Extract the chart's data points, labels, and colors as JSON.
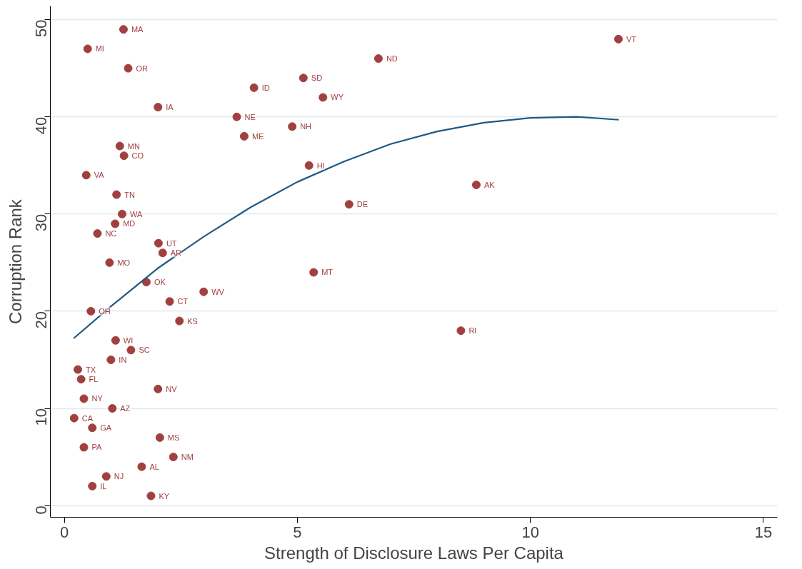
{
  "chart_data": {
    "type": "scatter",
    "xlabel": "Strength of Disclosure Laws Per Capita",
    "ylabel": "Corruption Rank",
    "xlim": [
      -0.3,
      15.3
    ],
    "ylim": [
      -1.2,
      51.4
    ],
    "xticks": [
      0,
      5,
      10,
      15
    ],
    "yticks": [
      0,
      10,
      20,
      30,
      40,
      50
    ],
    "grid": "y",
    "series": [
      {
        "color": "#a0403f",
        "marker": "circle",
        "x": [
          1.27,
          0.5,
          1.37,
          2.01,
          1.19,
          1.28,
          0.47,
          1.12,
          1.24,
          1.09,
          0.71,
          0.97,
          2.02,
          2.11,
          1.76,
          2.26,
          2.47,
          2.99,
          0.57,
          1.1,
          1.43,
          1.0,
          0.29,
          0.36,
          0.42,
          1.03,
          0.21,
          0.6,
          0.42,
          2.01,
          2.05,
          2.34,
          1.66,
          0.9,
          0.6,
          1.86,
          3.7,
          3.86,
          4.07,
          4.89,
          5.13,
          5.55,
          5.25,
          6.74,
          6.11,
          5.35,
          8.84,
          8.51,
          11.89
        ],
        "values": [
          49,
          47,
          45,
          41,
          37,
          36,
          34,
          32,
          30,
          29,
          28,
          25,
          27,
          26,
          23,
          21,
          19,
          22,
          20,
          17,
          16,
          15,
          14,
          13,
          11,
          10,
          9,
          8,
          6,
          12,
          7,
          5,
          4,
          3,
          2,
          1,
          40,
          38,
          43,
          39,
          44,
          42,
          35,
          46,
          31,
          24,
          33,
          18,
          48
        ],
        "value_labels": [
          "MA",
          "MI",
          "OR",
          "IA",
          "MN",
          "CO",
          "VA",
          "TN",
          "WA",
          "MD",
          "NC",
          "MO",
          "UT",
          "AR",
          "OK",
          "CT",
          "KS",
          "WV",
          "OH",
          "WI",
          "SC",
          "IN",
          "TX",
          "FL",
          "NY",
          "AZ",
          "CA",
          "GA",
          "PA",
          "NV",
          "MS",
          "NM",
          "AL",
          "NJ",
          "IL",
          "KY",
          "NE",
          "ME",
          "ID",
          "NH",
          "SD",
          "WY",
          "HI",
          "ND",
          "DE",
          "MT",
          "AK",
          "RI",
          "VT"
        ]
      },
      {
        "type": "line",
        "color": "#1f5a85",
        "x": [
          0.2,
          1,
          2,
          3,
          4,
          5,
          6,
          7,
          8,
          9,
          10,
          11,
          11.9
        ],
        "values": [
          17.2,
          20.5,
          24.4,
          27.7,
          30.7,
          33.3,
          35.4,
          37.2,
          38.5,
          39.4,
          39.9,
          40.0,
          39.7
        ]
      }
    ]
  }
}
